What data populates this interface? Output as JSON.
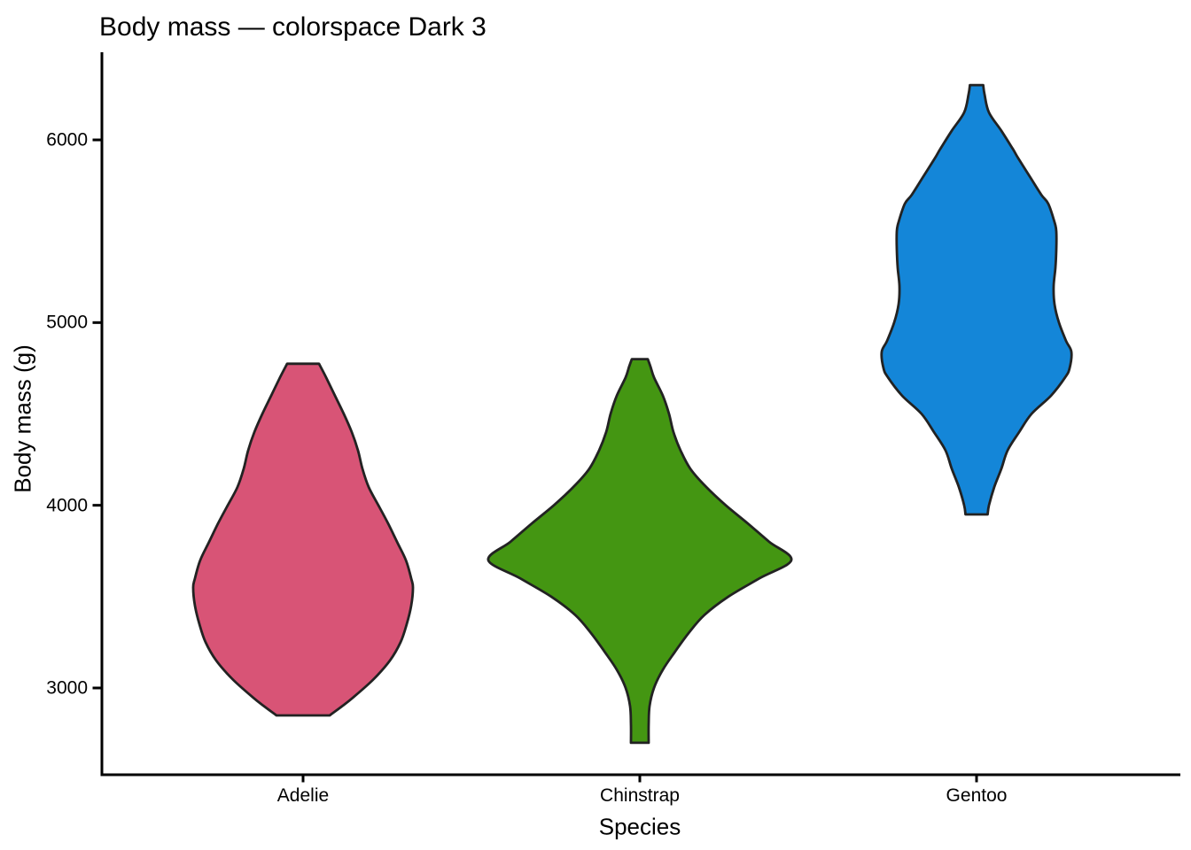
{
  "chart_data": {
    "type": "violin",
    "title": "Body mass — colorspace Dark 3",
    "xlabel": "Species",
    "ylabel": "Body mass (g)",
    "categories": [
      "Adelie",
      "Chinstrap",
      "Gentoo"
    ],
    "y_axis": {
      "ticks": [
        3000,
        4000,
        5000,
        6000
      ],
      "tick_labels": [
        "3000",
        "4000",
        "5000",
        "6000"
      ],
      "range": [
        2530,
        6480
      ]
    },
    "grid": false,
    "legend": "none",
    "palette": "Dark 3",
    "outline_color": "#222222",
    "series": [
      {
        "name": "Adelie",
        "fill": "#D85476",
        "mass_range_g": [
          2850,
          4775
        ],
        "widest_at_g": 3550,
        "density_profile": [
          [
            4775,
            18
          ],
          [
            4700,
            26
          ],
          [
            4600,
            36
          ],
          [
            4500,
            46
          ],
          [
            4400,
            55
          ],
          [
            4300,
            62
          ],
          [
            4200,
            67
          ],
          [
            4100,
            74
          ],
          [
            4000,
            85
          ],
          [
            3900,
            96
          ],
          [
            3800,
            106
          ],
          [
            3700,
            116
          ],
          [
            3600,
            122
          ],
          [
            3550,
            124
          ],
          [
            3450,
            122
          ],
          [
            3350,
            117
          ],
          [
            3250,
            110
          ],
          [
            3150,
            98
          ],
          [
            3050,
            80
          ],
          [
            2950,
            57
          ],
          [
            2900,
            44
          ],
          [
            2850,
            30
          ]
        ]
      },
      {
        "name": "Chinstrap",
        "fill": "#449612",
        "mass_range_g": [
          2700,
          4800
        ],
        "widest_at_g": 3700,
        "density_profile": [
          [
            4800,
            9
          ],
          [
            4760,
            12
          ],
          [
            4700,
            16
          ],
          [
            4600,
            26
          ],
          [
            4500,
            33
          ],
          [
            4400,
            38
          ],
          [
            4300,
            46
          ],
          [
            4200,
            57
          ],
          [
            4100,
            75
          ],
          [
            4000,
            97
          ],
          [
            3900,
            122
          ],
          [
            3800,
            146
          ],
          [
            3700,
            171
          ],
          [
            3600,
            135
          ],
          [
            3500,
            100
          ],
          [
            3400,
            73
          ],
          [
            3300,
            55
          ],
          [
            3200,
            40
          ],
          [
            3100,
            26
          ],
          [
            3000,
            16
          ],
          [
            2900,
            11
          ],
          [
            2800,
            10
          ],
          [
            2700,
            10
          ]
        ]
      },
      {
        "name": "Gentoo",
        "fill": "#1486D8",
        "mass_range_g": [
          3950,
          6300
        ],
        "widest_at_g": 4840,
        "density_profile": [
          [
            6300,
            7.5
          ],
          [
            6250,
            9
          ],
          [
            6150,
            14
          ],
          [
            6050,
            28
          ],
          [
            5950,
            41
          ],
          [
            5900,
            47
          ],
          [
            5800,
            60
          ],
          [
            5700,
            73
          ],
          [
            5650,
            81
          ],
          [
            5550,
            88
          ],
          [
            5500,
            90
          ],
          [
            5400,
            90
          ],
          [
            5300,
            89
          ],
          [
            5200,
            87
          ],
          [
            5100,
            88
          ],
          [
            5000,
            93
          ],
          [
            4900,
            101
          ],
          [
            4840,
            107
          ],
          [
            4750,
            105
          ],
          [
            4700,
            100
          ],
          [
            4600,
            84
          ],
          [
            4500,
            62
          ],
          [
            4400,
            48
          ],
          [
            4300,
            35
          ],
          [
            4200,
            28
          ],
          [
            4100,
            20
          ],
          [
            4000,
            14
          ],
          [
            3950,
            12.5
          ]
        ]
      }
    ]
  }
}
